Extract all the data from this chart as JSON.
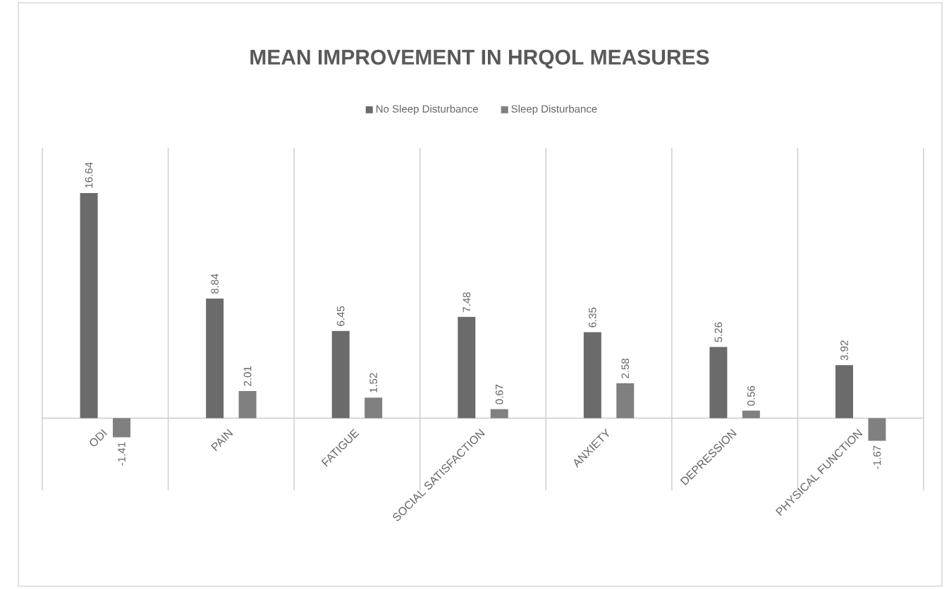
{
  "chart_data": {
    "type": "bar",
    "title": "MEAN IMPROVEMENT IN HRQOL MEASURES",
    "categories": [
      "ODI",
      "PAIN",
      "FATIGUE",
      "SOCIAL SATISFACTION",
      "ANXIETY",
      "DEPRESSION",
      "PHYSICAL FUNCTION"
    ],
    "series": [
      {
        "name": "No Sleep Disturbance",
        "color": "#6b6b6b",
        "values": [
          16.64,
          8.84,
          6.45,
          7.48,
          6.35,
          5.26,
          3.92
        ]
      },
      {
        "name": "Sleep Disturbance",
        "color": "#808080",
        "values": [
          -1.41,
          2.01,
          1.52,
          0.67,
          2.58,
          0.56,
          -1.67
        ]
      }
    ],
    "data_labels": true,
    "tick_labels": "x",
    "grid": "x",
    "legend": "top"
  }
}
